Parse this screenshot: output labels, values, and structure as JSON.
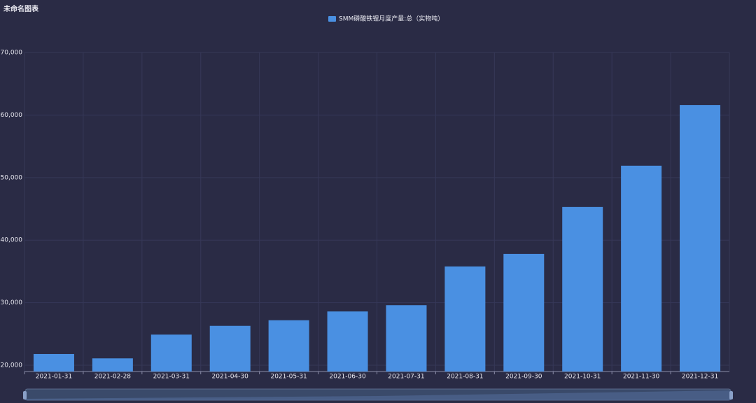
{
  "chart_data": {
    "type": "bar",
    "title": "未命名图表",
    "series": [
      {
        "name": "SMM磷酸铁锂月度产量:总（实物吨）",
        "color": "#4a90e2",
        "values": [
          21800,
          21100,
          24900,
          26300,
          27200,
          28600,
          29600,
          35800,
          37800,
          45300,
          51900,
          61600
        ]
      }
    ],
    "categories": [
      "2021-01-31",
      "2021-02-28",
      "2021-03-31",
      "2021-04-30",
      "2021-05-31",
      "2021-06-30",
      "2021-07-31",
      "2021-08-31",
      "2021-09-30",
      "2021-10-31",
      "2021-11-30",
      "2021-12-31"
    ],
    "ylim": [
      19000,
      70000
    ],
    "yticks": [
      {
        "value": 20000,
        "label": "20,000"
      },
      {
        "value": 30000,
        "label": "30,000"
      },
      {
        "value": 40000,
        "label": "40,000"
      },
      {
        "value": 50000,
        "label": "50,000"
      },
      {
        "value": 60000,
        "label": "60,000"
      },
      {
        "value": 70000,
        "label": "70,000"
      }
    ],
    "grid": true
  }
}
